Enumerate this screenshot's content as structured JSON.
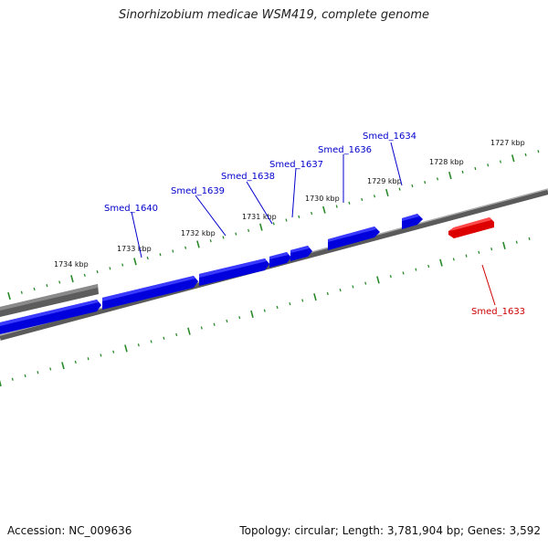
{
  "title": "Sinorhizobium medicae WSM419, complete genome",
  "footer": {
    "accession": "Accession: NC_009636",
    "summary": "Topology: circular; Length: 3,781,904 bp; Genes: 3,592"
  },
  "colors": {
    "forward_gene": "#0000ee",
    "reverse_gene": "#ee0000",
    "other_feature": "#666666",
    "ticks": "#2a8a2a",
    "backbone": "#888888"
  },
  "ruler": [
    {
      "label": "1734 kbp"
    },
    {
      "label": "1733 kbp"
    },
    {
      "label": "1732 kbp"
    },
    {
      "label": "1731 kbp"
    },
    {
      "label": "1730 kbp"
    },
    {
      "label": "1729 kbp"
    },
    {
      "label": "1728 kbp"
    },
    {
      "label": "1727 kbp"
    }
  ],
  "genes": [
    {
      "label": "Smed_1640",
      "strand": "forward"
    },
    {
      "label": "Smed_1639",
      "strand": "forward"
    },
    {
      "label": "Smed_1638",
      "strand": "forward"
    },
    {
      "label": "Smed_1637",
      "strand": "forward"
    },
    {
      "label": "Smed_1636",
      "strand": "forward"
    },
    {
      "label": "Smed_1634",
      "strand": "forward"
    },
    {
      "label": "Smed_1633",
      "strand": "reverse"
    }
  ]
}
